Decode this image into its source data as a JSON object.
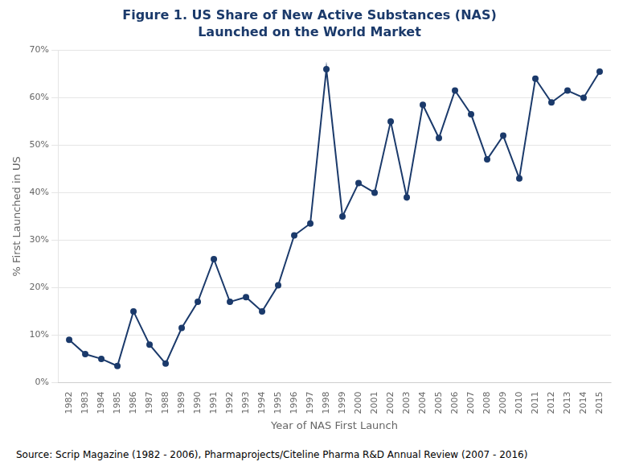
{
  "chart_data": {
    "type": "line",
    "title": "Figure 1. US Share of New Active Substances (NAS)",
    "subtitle": "Launched on the World Market",
    "x_label": "Year of NAS First Launch",
    "y_label": "% First Launched in US",
    "x": [
      1982,
      1983,
      1984,
      1985,
      1986,
      1987,
      1988,
      1989,
      1990,
      1991,
      1992,
      1993,
      1994,
      1995,
      1996,
      1997,
      1998,
      1999,
      2000,
      2001,
      2002,
      2003,
      2004,
      2005,
      2006,
      2007,
      2008,
      2009,
      2010,
      2011,
      2012,
      2013,
      2014,
      2015
    ],
    "values": [
      9,
      6,
      5,
      3.5,
      15,
      8,
      4,
      11.5,
      17,
      26,
      17,
      18,
      15,
      20.5,
      31,
      33.5,
      66,
      35,
      42,
      40,
      55,
      39,
      58.5,
      51.5,
      61.5,
      56.5,
      47,
      52,
      43,
      64,
      59,
      61.5,
      60,
      65.5
    ],
    "color": "#1b3a6b",
    "marker": "circle",
    "xlim": [
      1981.3,
      2015.7
    ],
    "xticks": [
      1982,
      1983,
      1984,
      1985,
      1986,
      1987,
      1988,
      1989,
      1990,
      1991,
      1992,
      1993,
      1994,
      1995,
      1996,
      1997,
      1998,
      1999,
      2000,
      2001,
      2002,
      2003,
      2004,
      2005,
      2006,
      2007,
      2008,
      2009,
      2010,
      2011,
      2012,
      2013,
      2014,
      2015
    ],
    "ylim": [
      0,
      70
    ],
    "yticks": [
      {
        "value": 0,
        "label": "0%"
      },
      {
        "value": 10,
        "label": "10%"
      },
      {
        "value": 20,
        "label": "20%"
      },
      {
        "value": 30,
        "label": "30%"
      },
      {
        "value": 40,
        "label": "40%"
      },
      {
        "value": 50,
        "label": "50%"
      },
      {
        "value": 60,
        "label": "60%"
      },
      {
        "value": 70,
        "label": "70%"
      }
    ],
    "grid": "y",
    "annotations": [
      "Source: Scrip Magazine (1982 - 2006), Pharmaprojects/Citeline Pharma R&D Annual Review (2007 - 2016)"
    ]
  }
}
